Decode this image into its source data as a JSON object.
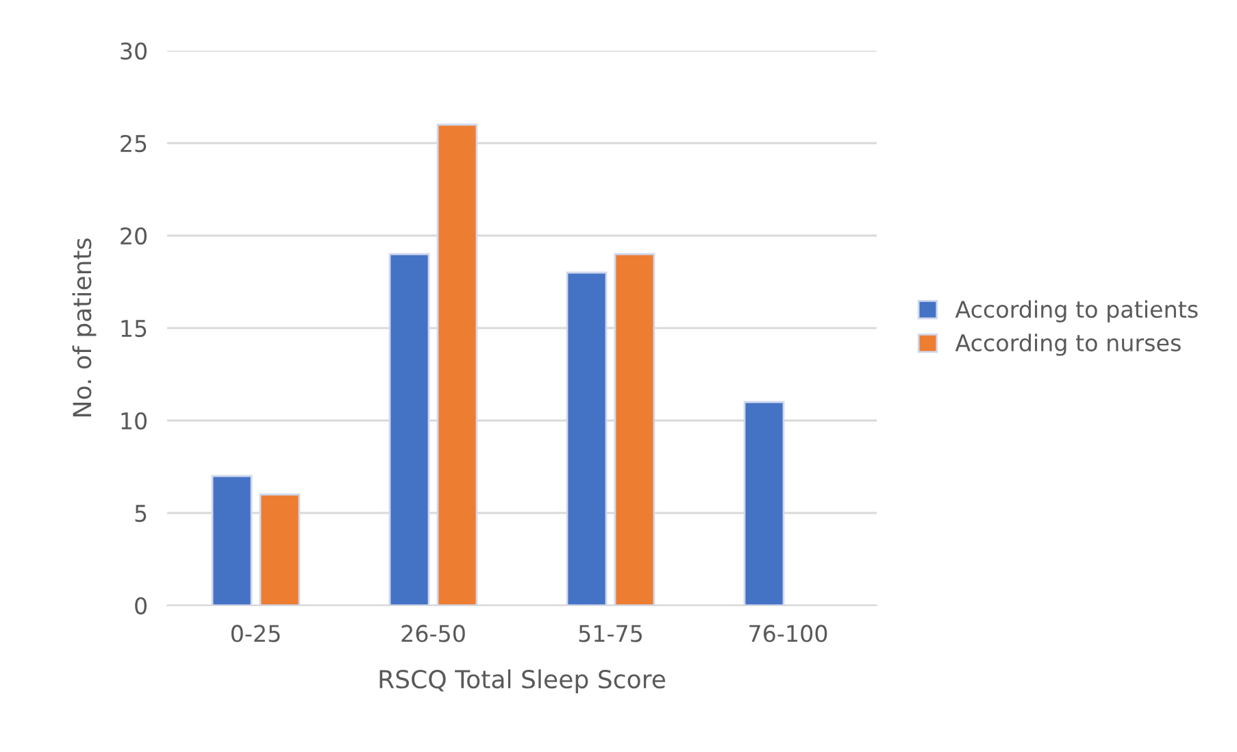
{
  "chart_data": {
    "type": "bar",
    "xlabel": "RSCQ Total Sleep Score",
    "ylabel": "No. of patients",
    "categories": [
      "0-25",
      "26-50",
      "51-75",
      "76-100"
    ],
    "series": [
      {
        "name": "According to patients",
        "color": "#4472c4",
        "values": [
          7,
          19,
          18,
          11
        ]
      },
      {
        "name": "According to nurses",
        "color": "#ed7d31",
        "values": [
          6,
          26,
          19,
          null
        ]
      }
    ],
    "ylim": [
      0,
      30
    ],
    "yticks": [
      0,
      5,
      10,
      15,
      20,
      25,
      30
    ],
    "grid": "y",
    "legend": "right"
  }
}
